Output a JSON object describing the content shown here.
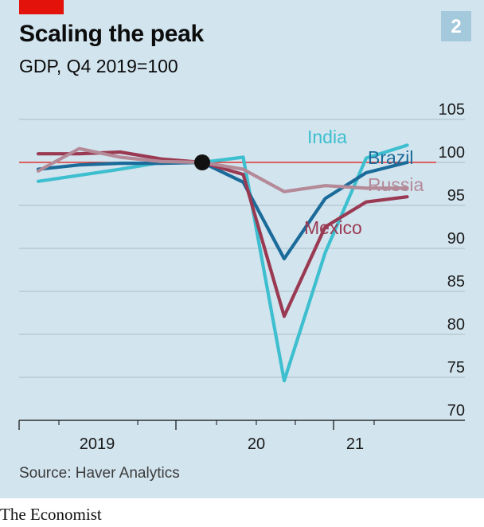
{
  "header": {
    "title": "Scaling the peak",
    "subtitle": "GDP, Q4 2019=100",
    "chart_number": "2"
  },
  "footer": {
    "source": "Source: Haver Analytics",
    "brand": "The Economist"
  },
  "colors": {
    "background": "#d2e4ee",
    "accent_red": "#e3120b",
    "India": "#3ebfcf",
    "Brazil": "#1b6b9a",
    "Russia": "#b48a98",
    "Mexico": "#9a3a52",
    "reference_line": "#e3120b"
  },
  "chart_data": {
    "type": "line",
    "title": "Scaling the peak",
    "subtitle": "GDP, Q4 2019=100",
    "x": [
      "2018-Q4",
      "2019-Q1",
      "2019-Q2",
      "2019-Q3",
      "2019-Q4",
      "2020-Q1",
      "2020-Q2",
      "2020-Q3",
      "2020-Q4",
      "2021-Q1"
    ],
    "x_tick_labels": [
      "2019",
      "20",
      "21"
    ],
    "y_ticks": [
      105,
      100,
      95,
      90,
      85,
      80,
      75,
      70
    ],
    "ylim": [
      70,
      105
    ],
    "y_axis_side": "right",
    "reference_line": 100,
    "highlight_point": {
      "x": "2019-Q4",
      "y": 100
    },
    "grid": true,
    "legend": "direct labels at line ends",
    "series": [
      {
        "name": "India",
        "values": [
          97.8,
          98.5,
          99.2,
          100.0,
          100.0,
          100.6,
          74.6,
          89.5,
          100.5,
          102.0
        ]
      },
      {
        "name": "Brazil",
        "values": [
          99.2,
          99.7,
          99.9,
          99.9,
          100.0,
          97.7,
          88.8,
          95.8,
          98.8,
          100.0
        ]
      },
      {
        "name": "Russia",
        "values": [
          99.0,
          101.6,
          100.6,
          100.1,
          100.0,
          99.2,
          96.6,
          97.3,
          97.0,
          97.0
        ]
      },
      {
        "name": "Mexico",
        "values": [
          101.0,
          101.0,
          101.2,
          100.4,
          100.0,
          98.6,
          82.1,
          92.5,
          95.4,
          96.0
        ]
      }
    ]
  }
}
